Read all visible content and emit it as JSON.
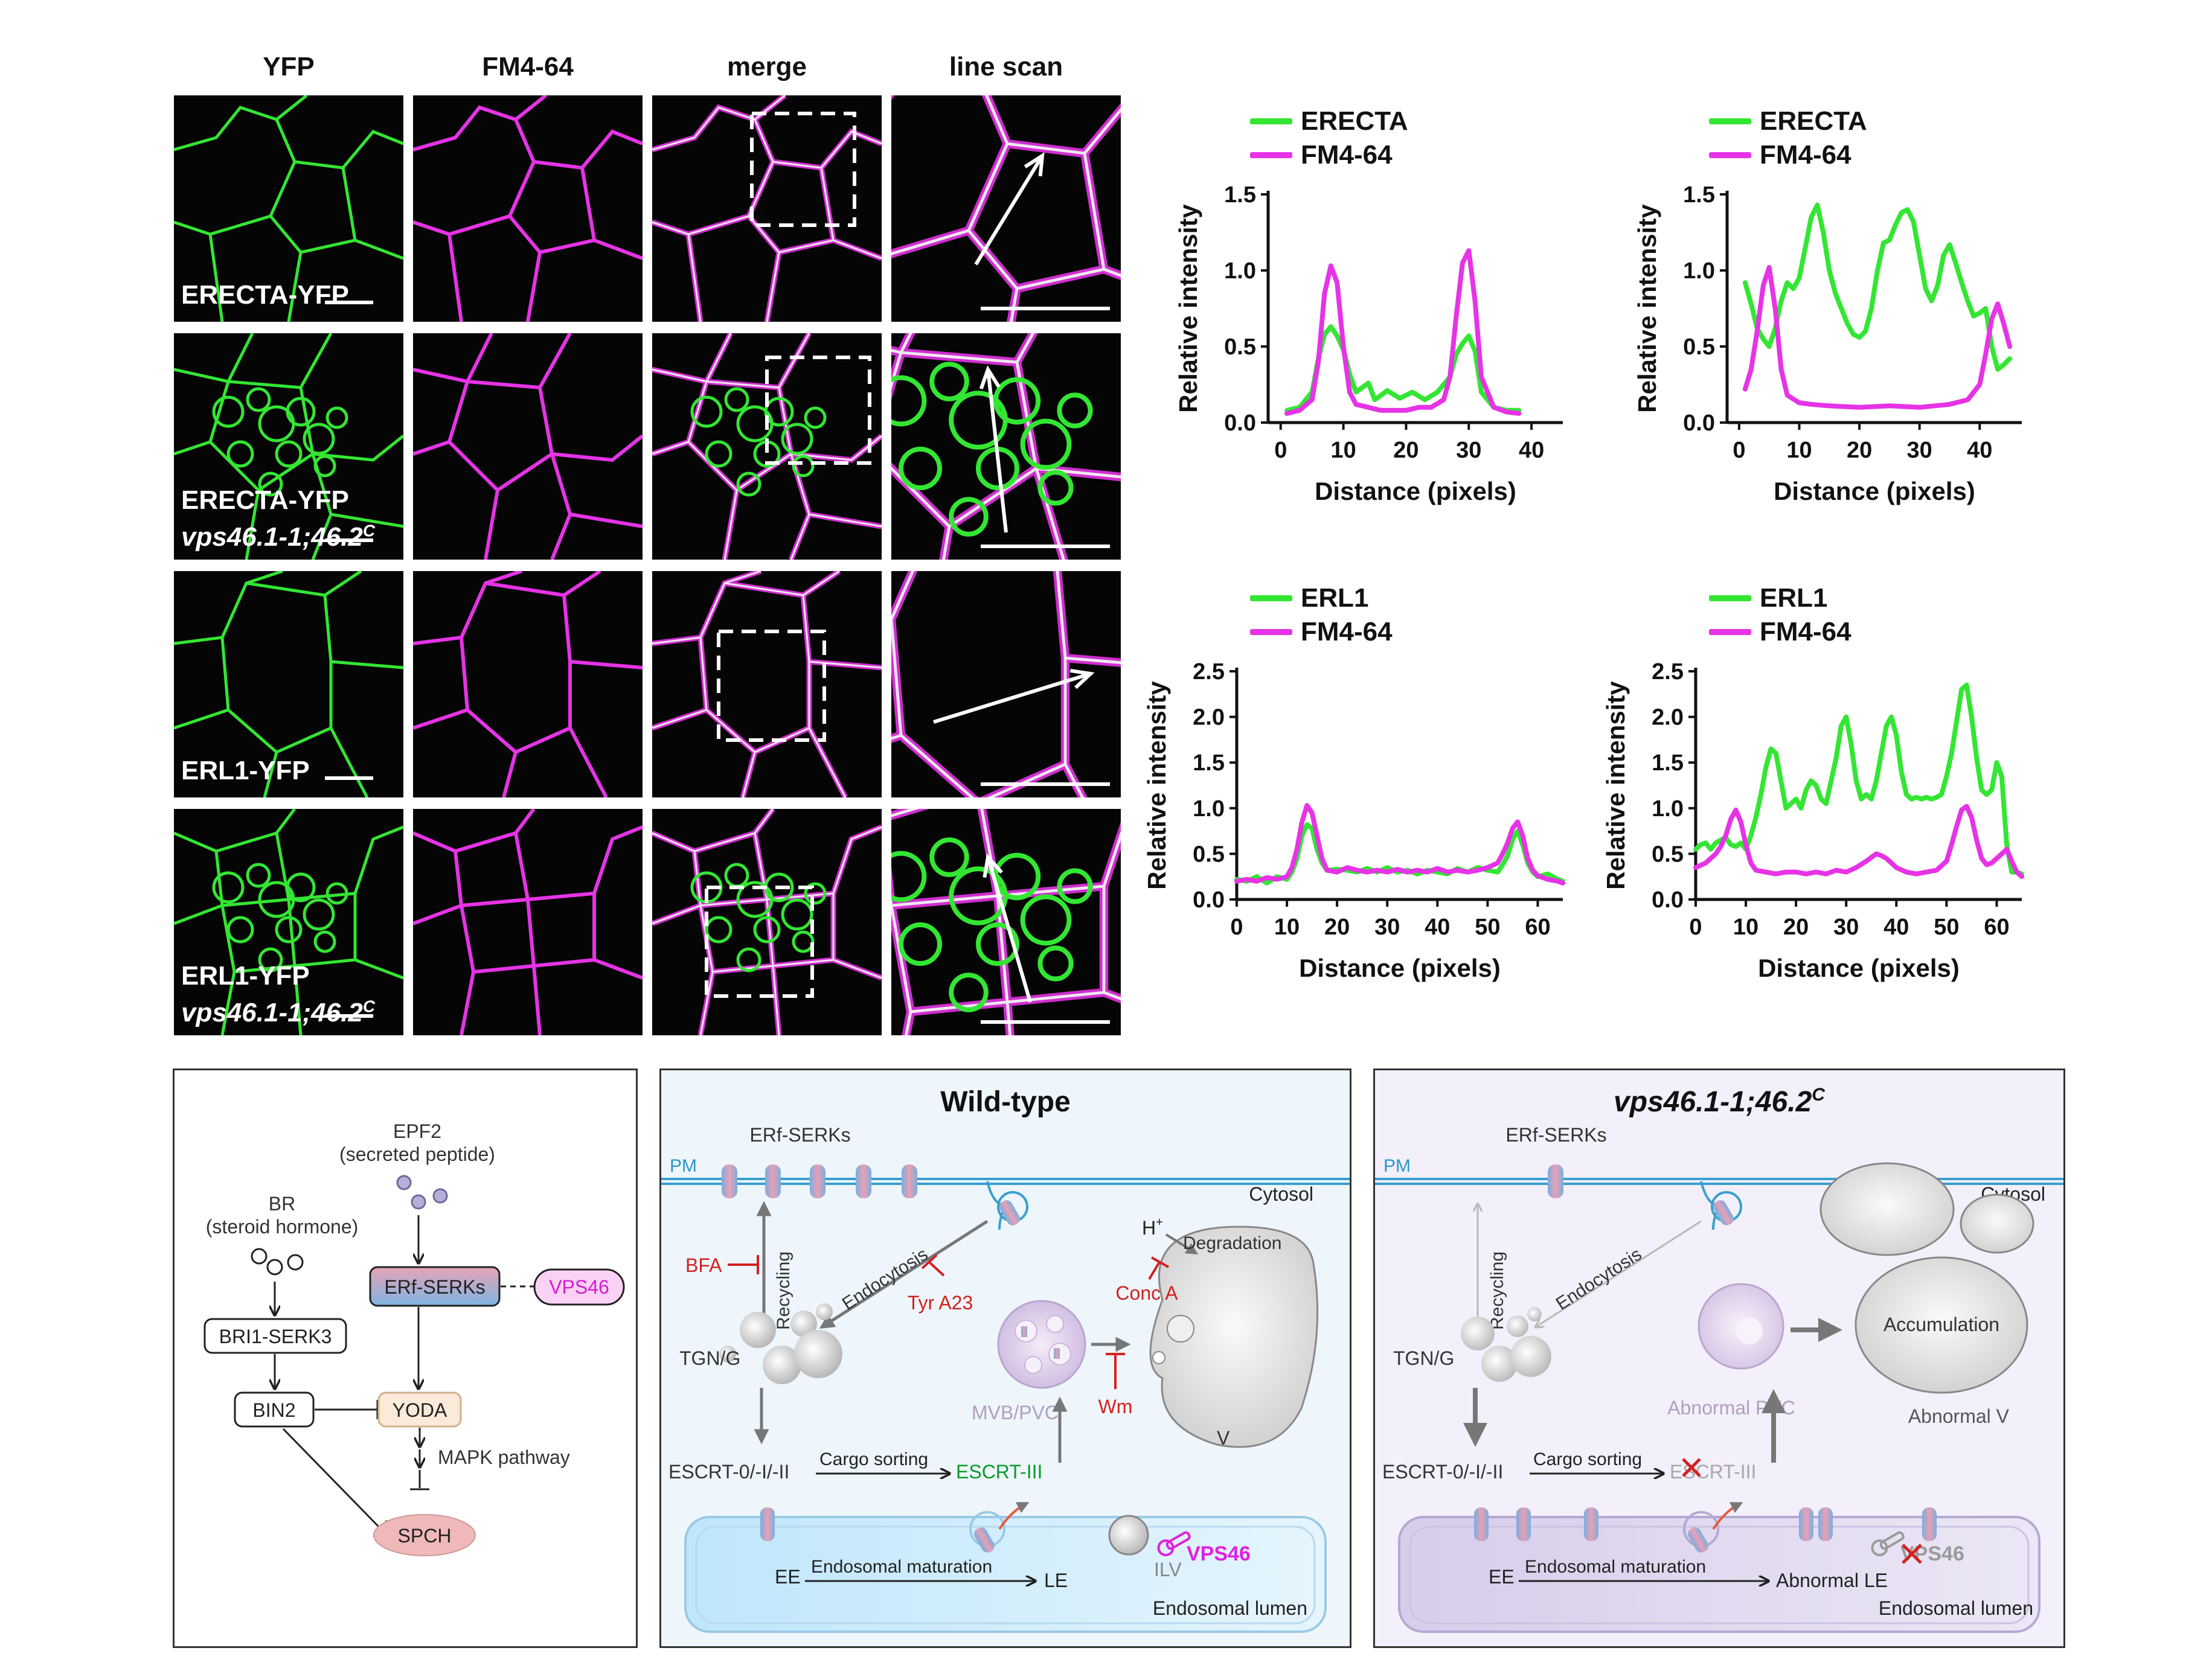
{
  "micro": {
    "columns": [
      "YFP",
      "FM4-64",
      "merge",
      "line scan"
    ],
    "rows": [
      {
        "label1": "ERECTA-YFP",
        "label2": ""
      },
      {
        "label1": "ERECTA-YFP",
        "label2": "vps46.1-1;46.2",
        "sup": "C"
      },
      {
        "label1": "ERL1-YFP",
        "label2": ""
      },
      {
        "label1": "ERL1-YFP",
        "label2": "vps46.1-1;46.2",
        "sup": "C"
      }
    ]
  },
  "colors": {
    "green": "#33e633",
    "magenta": "#e633e6",
    "accent_red": "#d42020",
    "escrt_green": "#0a9a2a",
    "vps_magenta": "#e020e0"
  },
  "chart_data": [
    {
      "type": "line",
      "ylabel": "Relative intensity",
      "xlabel": "Distance (pixels)",
      "xticks": [
        "0",
        "10",
        "20",
        "30",
        "40"
      ],
      "yticks": [
        "0.0",
        "0.5",
        "1.0",
        "1.5"
      ],
      "xlim": [
        -2,
        45
      ],
      "ylim": [
        0,
        1.5
      ],
      "series": [
        {
          "name": "ERECTA",
          "color": "green",
          "x": [
            1,
            3,
            5,
            6,
            7,
            8,
            9,
            10,
            11,
            12,
            14,
            15,
            17,
            19,
            21,
            23,
            25,
            27,
            28,
            29,
            30,
            31,
            32,
            34,
            36,
            38
          ],
          "y": [
            0.08,
            0.1,
            0.2,
            0.42,
            0.58,
            0.63,
            0.57,
            0.48,
            0.32,
            0.2,
            0.26,
            0.15,
            0.21,
            0.16,
            0.2,
            0.15,
            0.2,
            0.3,
            0.45,
            0.52,
            0.57,
            0.47,
            0.2,
            0.1,
            0.08,
            0.08
          ]
        },
        {
          "name": "FM4-64",
          "color": "magenta",
          "x": [
            1,
            3,
            5,
            6,
            7,
            8,
            9,
            10,
            11,
            12,
            14,
            16,
            18,
            20,
            22,
            24,
            26,
            27,
            28,
            29,
            30,
            31,
            32,
            34,
            36,
            38
          ],
          "y": [
            0.06,
            0.08,
            0.15,
            0.4,
            0.85,
            1.03,
            0.92,
            0.5,
            0.2,
            0.12,
            0.1,
            0.08,
            0.08,
            0.08,
            0.1,
            0.1,
            0.15,
            0.3,
            0.7,
            1.05,
            1.13,
            0.8,
            0.3,
            0.1,
            0.07,
            0.06
          ]
        }
      ]
    },
    {
      "type": "line",
      "ylabel": "Relative intensity",
      "xlabel": "Distance (pixels)",
      "xticks": [
        "0",
        "10",
        "20",
        "30",
        "40"
      ],
      "yticks": [
        "0.0",
        "0.5",
        "1.0",
        "1.5"
      ],
      "xlim": [
        -2,
        47
      ],
      "ylim": [
        0,
        1.5
      ],
      "series": [
        {
          "name": "ERECTA",
          "color": "green",
          "x": [
            1,
            2,
            3,
            4,
            5,
            6,
            7,
            8,
            9,
            10,
            11,
            12,
            13,
            14,
            15,
            16,
            17,
            18,
            19,
            20,
            21,
            22,
            23,
            24,
            25,
            26,
            27,
            28,
            29,
            30,
            31,
            32,
            33,
            34,
            35,
            36,
            37,
            38,
            39,
            40,
            41,
            42,
            43,
            44,
            45
          ],
          "y": [
            0.92,
            0.78,
            0.62,
            0.55,
            0.5,
            0.62,
            0.8,
            0.92,
            0.88,
            0.95,
            1.15,
            1.35,
            1.43,
            1.25,
            1.0,
            0.85,
            0.75,
            0.65,
            0.58,
            0.56,
            0.6,
            0.75,
            1.0,
            1.18,
            1.2,
            1.3,
            1.38,
            1.4,
            1.32,
            1.1,
            0.88,
            0.8,
            0.9,
            1.1,
            1.17,
            1.05,
            0.92,
            0.8,
            0.7,
            0.72,
            0.75,
            0.5,
            0.35,
            0.38,
            0.42
          ]
        },
        {
          "name": "FM4-64",
          "color": "magenta",
          "x": [
            1,
            2,
            3,
            4,
            5,
            6,
            7,
            8,
            10,
            12,
            15,
            20,
            25,
            30,
            35,
            38,
            40,
            41,
            42,
            43,
            44,
            45
          ],
          "y": [
            0.22,
            0.35,
            0.6,
            0.9,
            1.02,
            0.75,
            0.35,
            0.18,
            0.13,
            0.12,
            0.11,
            0.1,
            0.11,
            0.1,
            0.12,
            0.15,
            0.25,
            0.45,
            0.68,
            0.78,
            0.65,
            0.5
          ]
        }
      ]
    },
    {
      "type": "line",
      "ylabel": "Relative intensity",
      "xlabel": "Distance (pixels)",
      "xticks": [
        "0",
        "10",
        "20",
        "30",
        "40",
        "50",
        "60"
      ],
      "yticks": [
        "0.0",
        "0.5",
        "1.0",
        "1.5",
        "2.0",
        "2.5"
      ],
      "xlim": [
        0,
        65
      ],
      "ylim": [
        0,
        2.5
      ],
      "series": [
        {
          "name": "ERL1",
          "color": "green",
          "x": [
            0,
            2,
            4,
            6,
            8,
            10,
            11,
            12,
            13,
            14,
            15,
            16,
            17,
            18,
            20,
            22,
            24,
            26,
            28,
            30,
            32,
            34,
            36,
            38,
            40,
            42,
            44,
            46,
            48,
            50,
            52,
            53,
            54,
            55,
            56,
            57,
            58,
            59,
            60,
            62,
            64,
            65
          ],
          "y": [
            0.22,
            0.2,
            0.25,
            0.18,
            0.25,
            0.22,
            0.3,
            0.45,
            0.7,
            0.82,
            0.78,
            0.55,
            0.4,
            0.32,
            0.33,
            0.32,
            0.3,
            0.34,
            0.3,
            0.35,
            0.3,
            0.32,
            0.28,
            0.32,
            0.3,
            0.28,
            0.34,
            0.3,
            0.35,
            0.32,
            0.3,
            0.38,
            0.48,
            0.66,
            0.75,
            0.6,
            0.4,
            0.3,
            0.25,
            0.28,
            0.22,
            0.2
          ]
        },
        {
          "name": "FM4-64",
          "color": "magenta",
          "x": [
            0,
            2,
            4,
            6,
            8,
            10,
            11,
            12,
            13,
            14,
            15,
            16,
            17,
            18,
            20,
            22,
            24,
            26,
            28,
            30,
            32,
            34,
            36,
            38,
            40,
            42,
            44,
            46,
            48,
            50,
            52,
            53,
            54,
            55,
            56,
            57,
            58,
            59,
            60,
            62,
            64,
            65
          ],
          "y": [
            0.2,
            0.22,
            0.2,
            0.24,
            0.22,
            0.25,
            0.35,
            0.55,
            0.85,
            1.03,
            0.95,
            0.7,
            0.45,
            0.32,
            0.3,
            0.35,
            0.32,
            0.3,
            0.32,
            0.3,
            0.33,
            0.3,
            0.32,
            0.3,
            0.34,
            0.3,
            0.32,
            0.3,
            0.32,
            0.35,
            0.4,
            0.5,
            0.62,
            0.78,
            0.85,
            0.7,
            0.45,
            0.32,
            0.26,
            0.22,
            0.2,
            0.18
          ]
        }
      ]
    },
    {
      "type": "line",
      "ylabel": "Relative intensity",
      "xlabel": "Distance (pixels)",
      "xticks": [
        "0",
        "10",
        "20",
        "30",
        "40",
        "50",
        "60"
      ],
      "yticks": [
        "0.0",
        "0.5",
        "1.0",
        "1.5",
        "2.0",
        "2.5"
      ],
      "xlim": [
        0,
        65
      ],
      "ylim": [
        0,
        2.5
      ],
      "series": [
        {
          "name": "ERL1",
          "color": "green",
          "x": [
            0,
            1,
            2,
            3,
            4,
            5,
            6,
            7,
            8,
            9,
            10,
            11,
            12,
            13,
            14,
            15,
            16,
            17,
            18,
            19,
            20,
            21,
            22,
            23,
            24,
            25,
            26,
            27,
            28,
            29,
            30,
            31,
            32,
            33,
            34,
            35,
            36,
            37,
            38,
            39,
            40,
            41,
            42,
            43,
            44,
            45,
            46,
            47,
            48,
            49,
            50,
            51,
            52,
            53,
            54,
            55,
            56,
            57,
            58,
            59,
            60,
            61,
            62,
            63,
            64,
            65
          ],
          "y": [
            0.55,
            0.6,
            0.62,
            0.55,
            0.62,
            0.65,
            0.68,
            0.6,
            0.58,
            0.62,
            0.55,
            0.7,
            0.9,
            1.15,
            1.45,
            1.65,
            1.6,
            1.3,
            1.0,
            1.05,
            1.1,
            1.0,
            1.2,
            1.3,
            1.25,
            1.1,
            1.05,
            1.3,
            1.55,
            1.9,
            2.0,
            1.7,
            1.3,
            1.1,
            1.15,
            1.1,
            1.3,
            1.6,
            1.9,
            2.0,
            1.8,
            1.4,
            1.15,
            1.1,
            1.12,
            1.1,
            1.12,
            1.1,
            1.12,
            1.15,
            1.35,
            1.6,
            1.95,
            2.3,
            2.35,
            2.0,
            1.55,
            1.2,
            1.15,
            1.2,
            1.5,
            1.35,
            0.6,
            0.3,
            0.3,
            0.28
          ]
        },
        {
          "name": "FM4-64",
          "color": "magenta",
          "x": [
            0,
            2,
            4,
            5,
            6,
            7,
            8,
            9,
            10,
            11,
            12,
            14,
            16,
            18,
            20,
            22,
            24,
            26,
            28,
            30,
            32,
            34,
            35,
            36,
            37,
            38,
            39,
            40,
            42,
            44,
            46,
            48,
            50,
            51,
            52,
            53,
            54,
            55,
            56,
            57,
            58,
            59,
            60,
            61,
            62,
            63,
            64,
            65
          ],
          "y": [
            0.35,
            0.4,
            0.5,
            0.58,
            0.7,
            0.88,
            0.98,
            0.85,
            0.6,
            0.4,
            0.32,
            0.3,
            0.28,
            0.3,
            0.3,
            0.28,
            0.3,
            0.28,
            0.32,
            0.3,
            0.35,
            0.42,
            0.46,
            0.5,
            0.48,
            0.45,
            0.4,
            0.35,
            0.3,
            0.28,
            0.3,
            0.32,
            0.42,
            0.6,
            0.8,
            0.98,
            1.02,
            0.9,
            0.65,
            0.45,
            0.38,
            0.4,
            0.45,
            0.5,
            0.55,
            0.42,
            0.3,
            0.25
          ]
        }
      ]
    }
  ],
  "pathway": {
    "epf2": "EPF2",
    "epf2_sub": "(secreted peptide)",
    "br": "BR",
    "br_sub": "(steroid hormone)",
    "erf": "ERf-SERKs",
    "vps46": "VPS46",
    "bri1": "BRI1-SERK3",
    "bin2": "BIN2",
    "yoda": "YODA",
    "mapk": "MAPK pathway",
    "spch": "SPCH"
  },
  "wildtype": {
    "title": "Wild-type",
    "pm": "PM",
    "erf": "ERf-SERKs",
    "cytosol": "Cytosol",
    "bfa": "BFA",
    "recycling": "Recycling",
    "endocytosis": "Endocytosis",
    "tyr": "Tyr A23",
    "h": "H",
    "h_sup": "+",
    "degradation": "Degradation",
    "conc": "Conc A",
    "wm": "Wm",
    "tgn": "TGN/G",
    "mvb": "MVB/PVC",
    "v": "V",
    "escrt012": "ESCRT-0/-I/-II",
    "cargo": "Cargo sorting",
    "escrt3": "ESCRT-III",
    "ee": "EE",
    "maturation": "Endosomal maturation",
    "le": "LE",
    "ilv": "ILV",
    "vps46": "VPS46",
    "lumen": "Endosomal lumen"
  },
  "mutant": {
    "title": "vps46.1-1;46.2",
    "title_sup": "C",
    "pm": "PM",
    "erf": "ERf-SERKs",
    "cytosol": "Cytosol",
    "recycling": "Recycling",
    "endocytosis": "Endocytosis",
    "tgn": "TGN/G",
    "pvc": "Abnormal PVC",
    "accumulation": "Accumulation",
    "abv": "Abnormal V",
    "escrt012": "ESCRT-0/-I/-II",
    "cargo": "Cargo sorting",
    "escrt3": "ESCRT-III",
    "ee": "EE",
    "maturation": "Endosomal maturation",
    "le": "Abnormal LE",
    "vps46": "VPS46",
    "lumen": "Endosomal lumen"
  }
}
